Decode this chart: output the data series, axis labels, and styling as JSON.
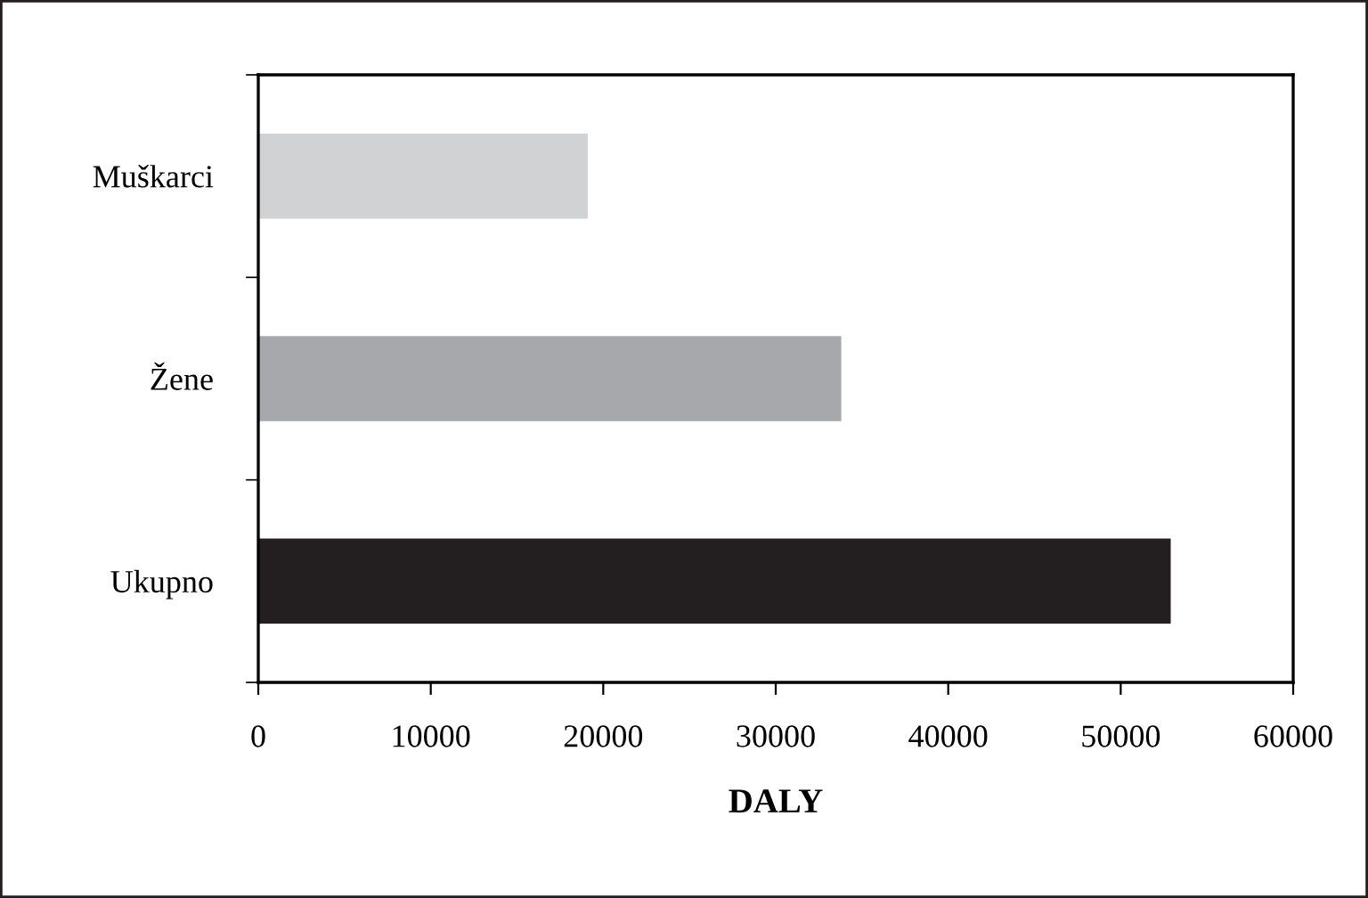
{
  "chart_data": {
    "type": "bar",
    "orientation": "horizontal",
    "xlabel": "DALY",
    "categories": [
      "Muškarci",
      "Žene",
      "Ukupno"
    ],
    "values": [
      19100,
      33800,
      52900
    ],
    "colors": [
      "#d1d2d4",
      "#a7a8ab",
      "#231f20"
    ],
    "xlim": [
      0,
      60000
    ],
    "xticks": [
      0,
      10000,
      20000,
      30000,
      40000,
      50000,
      60000
    ],
    "grid": false,
    "legend": false
  }
}
